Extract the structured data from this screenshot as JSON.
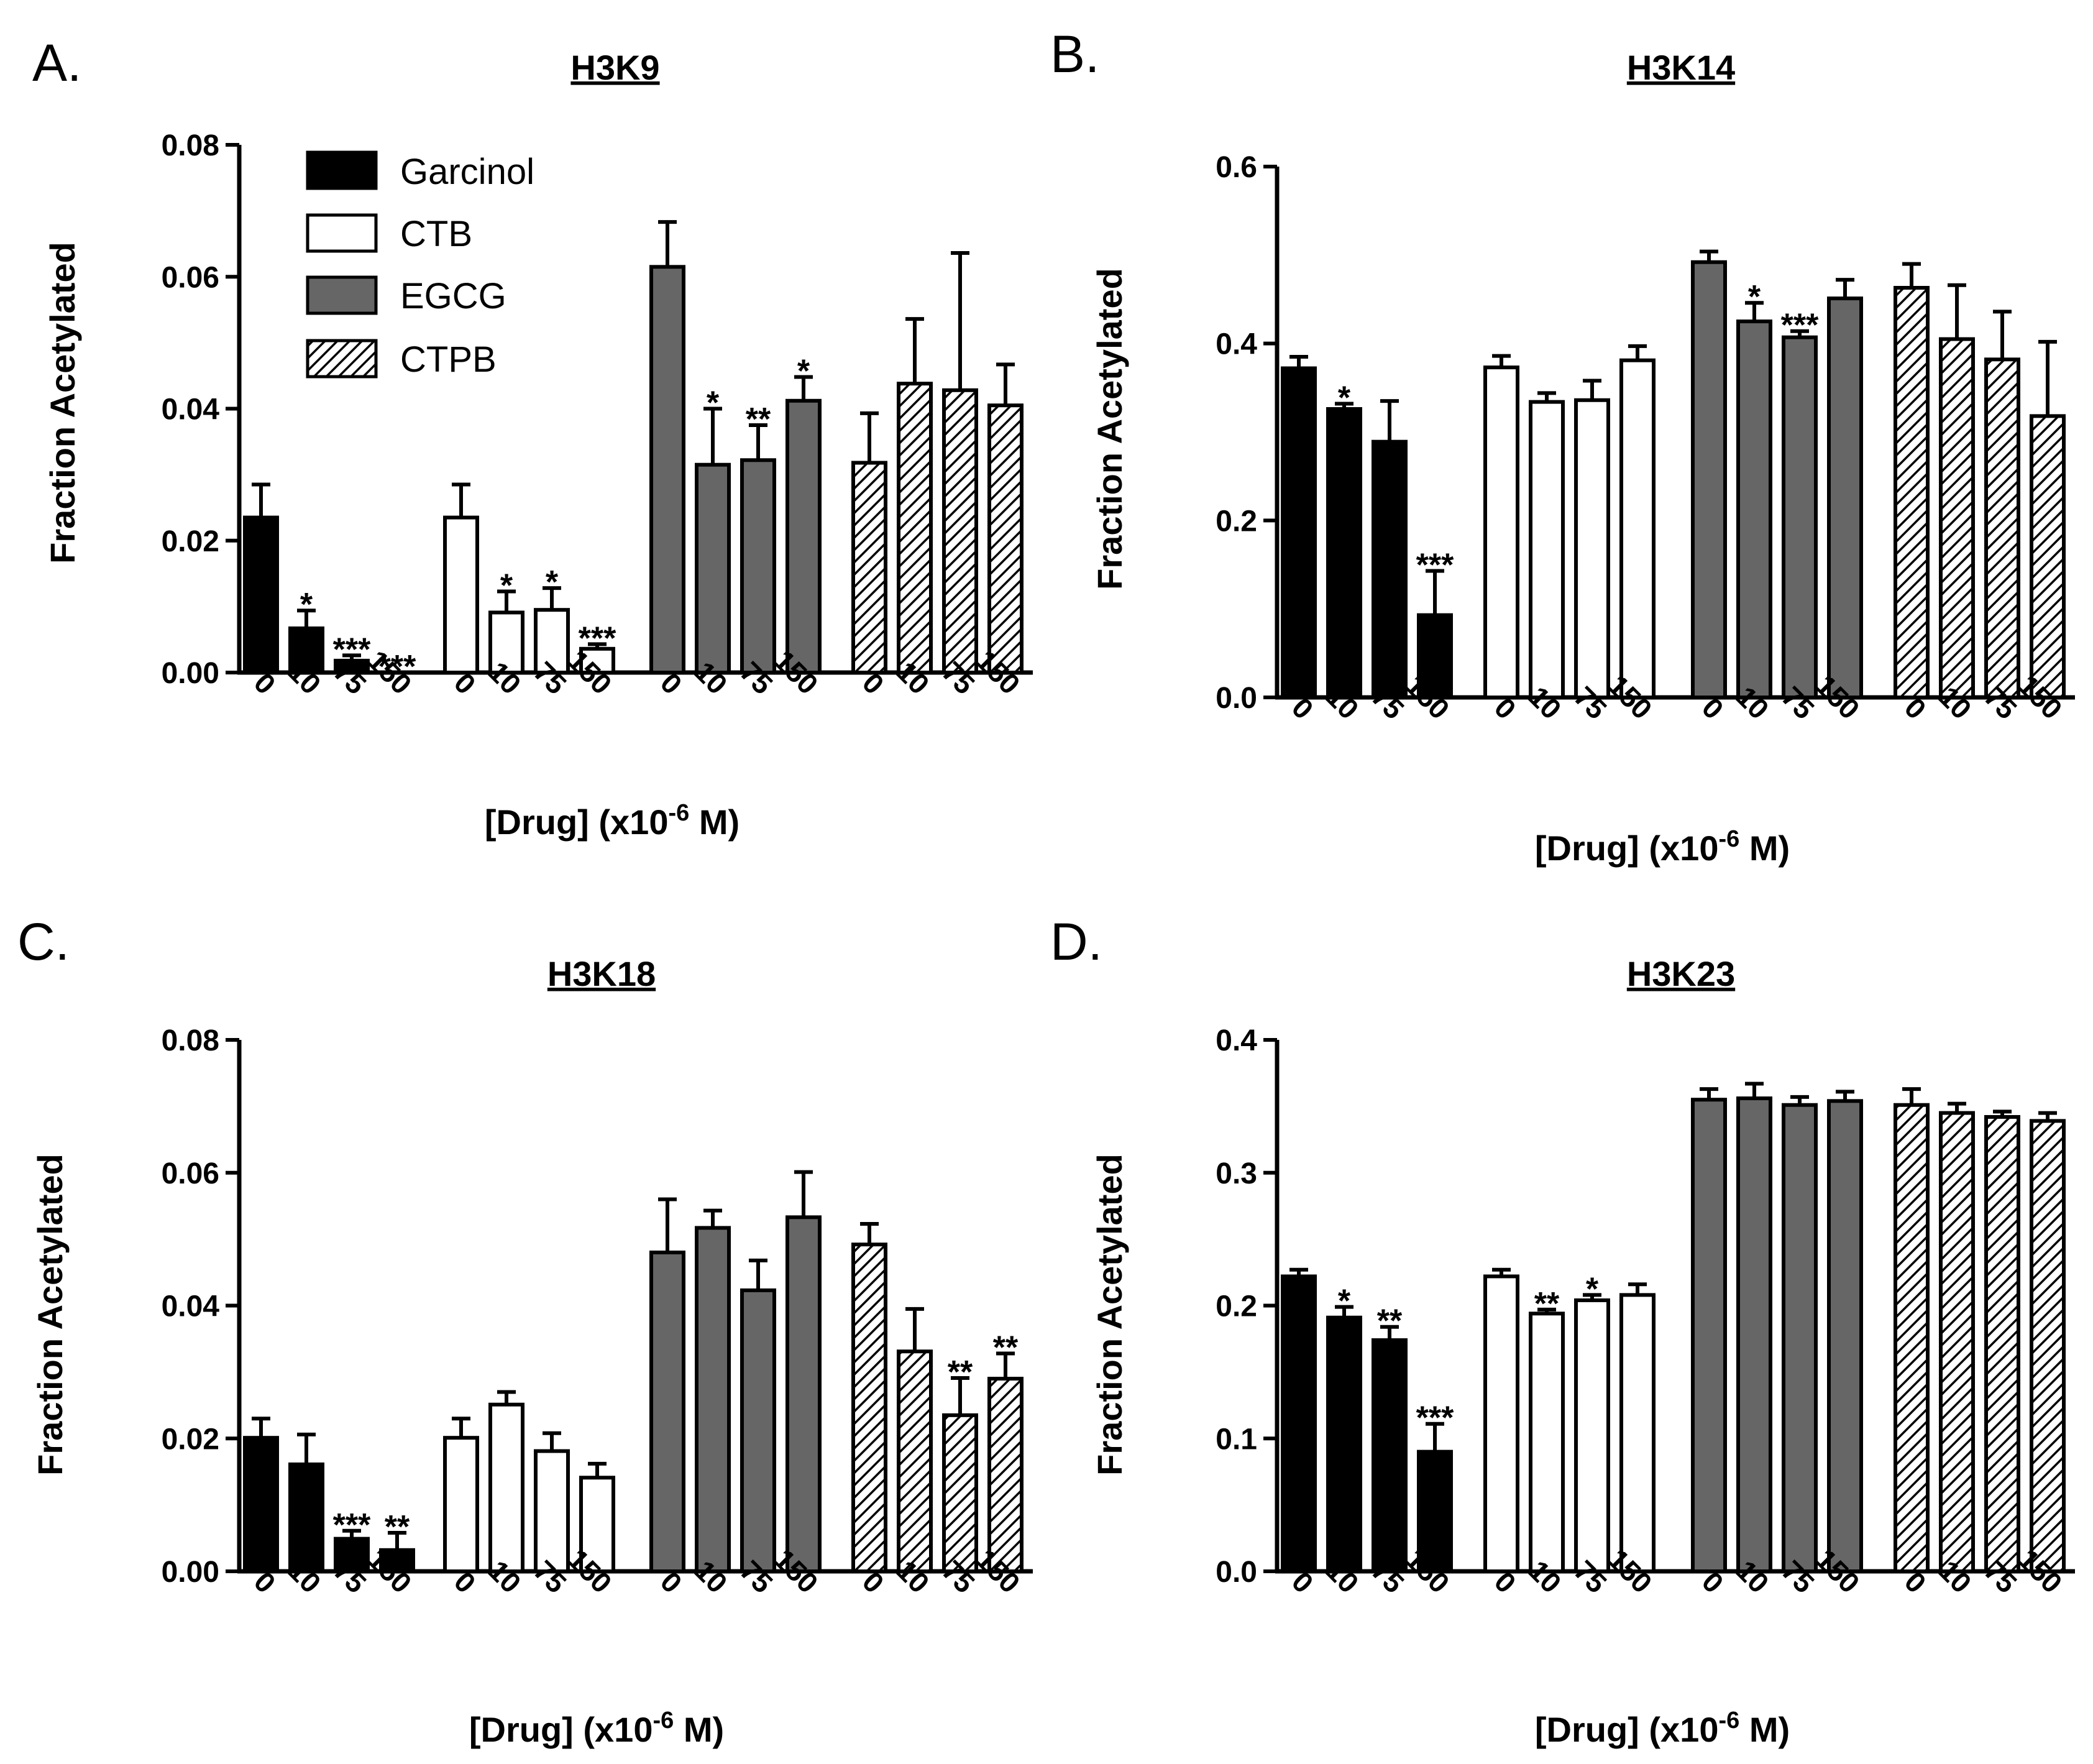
{
  "colors": {
    "Garcinol": "#000000",
    "CTB": "#ffffff",
    "EGCG": "#666666",
    "CTPB": "hatch"
  },
  "legend": [
    "Garcinol",
    "CTB",
    "EGCG",
    "CTPB"
  ],
  "chart_data": [
    {
      "panel": "A.",
      "title": "H3K9",
      "type": "bar",
      "ylabel": "Fraction Acetylated",
      "xlabel": "[Drug] (x10",
      "xlabel_exp": "-6",
      "xlabel_end": " M)",
      "ylim": [
        0,
        0.08
      ],
      "yticks": [
        "0.00",
        "0.02",
        "0.04",
        "0.06",
        "0.08"
      ],
      "categories": [
        "0",
        "10",
        "75",
        "150"
      ],
      "series": [
        {
          "name": "Garcinol",
          "values": [
            0.0235,
            0.0067,
            0.0018,
            0.0
          ],
          "err": [
            0.005,
            0.0027,
            0.0008,
            0.0
          ],
          "sig": [
            "",
            "*",
            "***",
            "***"
          ]
        },
        {
          "name": "CTB",
          "values": [
            0.0235,
            0.0091,
            0.0095,
            0.0036
          ],
          "err": [
            0.005,
            0.0032,
            0.0033,
            0.0007
          ],
          "sig": [
            "",
            "*",
            "*",
            "***"
          ]
        },
        {
          "name": "EGCG",
          "values": [
            0.0615,
            0.0315,
            0.0322,
            0.0412
          ],
          "err": [
            0.0068,
            0.0085,
            0.0053,
            0.0036
          ],
          "sig": [
            "",
            "*",
            "**",
            "*"
          ]
        },
        {
          "name": "CTPB",
          "values": [
            0.0318,
            0.0438,
            0.0428,
            0.0405
          ],
          "err": [
            0.0075,
            0.0098,
            0.0208,
            0.0062
          ],
          "sig": [
            "",
            "",
            "",
            ""
          ]
        }
      ]
    },
    {
      "panel": "B.",
      "title": "H3K14",
      "type": "bar",
      "ylabel": "Fraction Acetylated",
      "xlabel": "[Drug] (x10",
      "xlabel_exp": "-6",
      "xlabel_end": " M)",
      "ylim": [
        0,
        0.6
      ],
      "yticks": [
        "0.0",
        "0.2",
        "0.4",
        "0.6"
      ],
      "categories": [
        "0",
        "10",
        "75",
        "150"
      ],
      "series": [
        {
          "name": "Garcinol",
          "values": [
            0.372,
            0.326,
            0.289,
            0.093
          ],
          "err": [
            0.013,
            0.006,
            0.046,
            0.05
          ],
          "sig": [
            "",
            "*",
            "",
            "***"
          ]
        },
        {
          "name": "CTB",
          "values": [
            0.373,
            0.334,
            0.336,
            0.381
          ],
          "err": [
            0.013,
            0.01,
            0.022,
            0.016
          ],
          "sig": [
            "",
            "",
            "",
            ""
          ]
        },
        {
          "name": "EGCG",
          "values": [
            0.492,
            0.425,
            0.407,
            0.451
          ],
          "err": [
            0.012,
            0.021,
            0.007,
            0.021
          ],
          "sig": [
            "",
            "*",
            "***",
            ""
          ]
        },
        {
          "name": "CTPB",
          "values": [
            0.463,
            0.405,
            0.382,
            0.318
          ],
          "err": [
            0.027,
            0.061,
            0.054,
            0.084
          ],
          "sig": [
            "",
            "",
            "",
            ""
          ]
        }
      ]
    },
    {
      "panel": "C.",
      "title": "H3K18",
      "type": "bar",
      "ylabel": "Fraction Acetylated",
      "xlabel": "[Drug] (x10",
      "xlabel_exp": "-6",
      "xlabel_end": " M)",
      "ylim": [
        0,
        0.08
      ],
      "yticks": [
        "0.00",
        "0.02",
        "0.04",
        "0.06",
        "0.08"
      ],
      "categories": [
        "0",
        "10",
        "75",
        "150"
      ],
      "series": [
        {
          "name": "Garcinol",
          "values": [
            0.0201,
            0.0161,
            0.0049,
            0.0032
          ],
          "err": [
            0.0029,
            0.0045,
            0.0012,
            0.0026
          ],
          "sig": [
            "",
            "",
            "***",
            "**"
          ]
        },
        {
          "name": "CTB",
          "values": [
            0.0201,
            0.0251,
            0.0181,
            0.0141
          ],
          "err": [
            0.0029,
            0.0019,
            0.0027,
            0.0021
          ],
          "sig": [
            "",
            "",
            "",
            ""
          ]
        },
        {
          "name": "EGCG",
          "values": [
            0.048,
            0.0517,
            0.0423,
            0.0533
          ],
          "err": [
            0.008,
            0.0026,
            0.0045,
            0.0068
          ],
          "sig": [
            "",
            "",
            "",
            ""
          ]
        },
        {
          "name": "CTPB",
          "values": [
            0.0492,
            0.0331,
            0.0235,
            0.029
          ],
          "err": [
            0.0031,
            0.0064,
            0.0056,
            0.0038
          ],
          "sig": [
            "",
            "",
            "**",
            "**"
          ]
        }
      ]
    },
    {
      "panel": "D.",
      "title": "H3K23",
      "type": "bar",
      "ylabel": "Fraction Acetylated",
      "xlabel": "[Drug] (x10",
      "xlabel_exp": "-6",
      "xlabel_end": " M)",
      "ylim": [
        0,
        0.4
      ],
      "yticks": [
        "0.0",
        "0.1",
        "0.2",
        "0.3",
        "0.4"
      ],
      "categories": [
        "0",
        "10",
        "75",
        "150"
      ],
      "series": [
        {
          "name": "Garcinol",
          "values": [
            0.222,
            0.191,
            0.174,
            0.09
          ],
          "err": [
            0.005,
            0.008,
            0.01,
            0.021
          ],
          "sig": [
            "",
            "*",
            "**",
            "***"
          ]
        },
        {
          "name": "CTB",
          "values": [
            0.222,
            0.194,
            0.204,
            0.208
          ],
          "err": [
            0.005,
            0.003,
            0.004,
            0.008
          ],
          "sig": [
            "",
            "**",
            "*",
            ""
          ]
        },
        {
          "name": "EGCG",
          "values": [
            0.355,
            0.356,
            0.351,
            0.354
          ],
          "err": [
            0.008,
            0.011,
            0.006,
            0.007
          ],
          "sig": [
            "",
            "",
            "",
            ""
          ]
        },
        {
          "name": "CTPB",
          "values": [
            0.351,
            0.345,
            0.342,
            0.339
          ],
          "err": [
            0.012,
            0.007,
            0.004,
            0.006
          ],
          "sig": [
            "",
            "",
            "",
            ""
          ]
        }
      ]
    }
  ]
}
